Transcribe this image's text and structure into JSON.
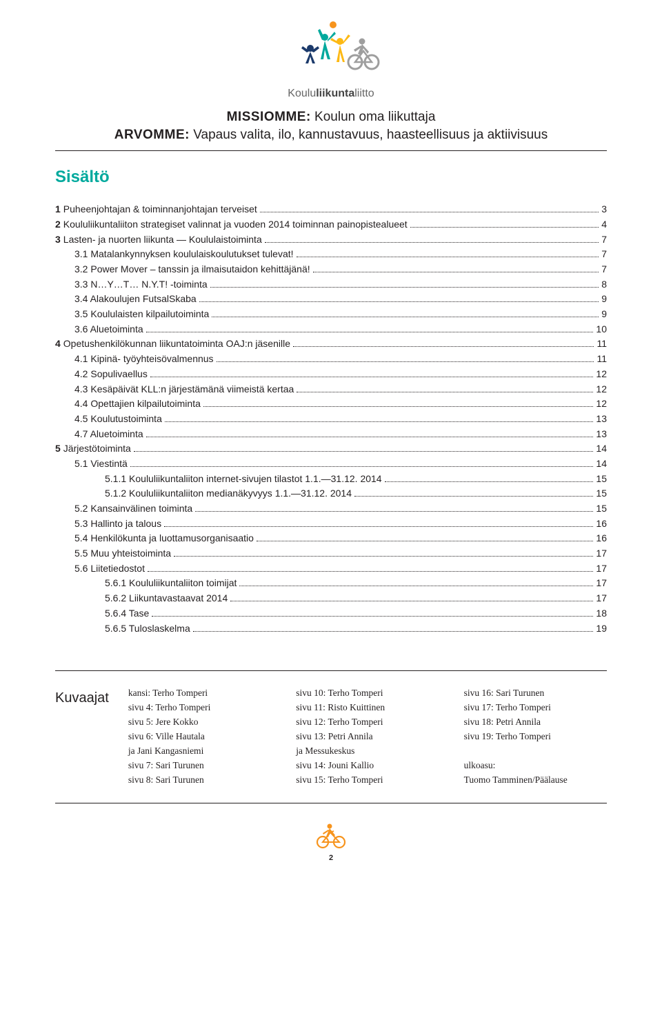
{
  "logo": {
    "word_light": "Koulu",
    "word_bold": "liikunta",
    "word_light2": "liitto",
    "colors": {
      "teal": "#00a99d",
      "navy": "#1b3a6b",
      "orange": "#f7941d",
      "yellow": "#fdb913",
      "grey": "#9e9e9e"
    }
  },
  "headline": {
    "label1": "MISSIOMME:",
    "text1": " Koulun oma liikuttaja",
    "label2": "ARVOMME:",
    "text2": " Vapaus valita, ilo, kannustavuus, haasteellisuus ja aktiivisuus"
  },
  "section_title": "Sisältö",
  "toc": [
    {
      "indent": 0,
      "strong": "1",
      "text": " Puheenjohtajan & toiminnanjohtajan terveiset",
      "page": "3"
    },
    {
      "indent": 0,
      "strong": "2",
      "text": " Koululiikuntaliiton strategiset valinnat ja vuoden 2014 toiminnan painopistealueet",
      "page": "4"
    },
    {
      "indent": 0,
      "strong": "3",
      "text": " Lasten- ja nuorten liikunta — Koululaistoiminta",
      "page": "7"
    },
    {
      "indent": 1,
      "text": "3.1 Matalankynnyksen koululaiskoulutukset tulevat! ",
      "page": "7"
    },
    {
      "indent": 1,
      "text": "3.2 Power Mover – tanssin ja ilmaisutaidon kehittäjänä!",
      "page": "7"
    },
    {
      "indent": 1,
      "text": "3.3 N…Y…T… N.Y.T! -toiminta",
      "page": "8"
    },
    {
      "indent": 1,
      "text": "3.4 Alakoulujen FutsalSkaba",
      "page": "9"
    },
    {
      "indent": 1,
      "text": "3.5 Koululaisten kilpailutoiminta",
      "page": "9"
    },
    {
      "indent": 1,
      "text": "3.6 Aluetoiminta",
      "page": "10"
    },
    {
      "indent": 0,
      "strong": "4",
      "text": " Opetushenkilökunnan liikuntatoiminta OAJ:n jäsenille",
      "page": "11"
    },
    {
      "indent": 1,
      "text": "4.1 Kipinä- työyhteisövalmennus",
      "page": "11"
    },
    {
      "indent": 1,
      "text": "4.2 Sopulivaellus",
      "page": "12"
    },
    {
      "indent": 1,
      "text": "4.3 Kesäpäivät KLL:n järjestämänä viimeistä kertaa",
      "page": "12"
    },
    {
      "indent": 1,
      "text": "4.4 Opettajien kilpailutoiminta",
      "page": "12"
    },
    {
      "indent": 1,
      "text": "4.5 Koulutustoiminta",
      "page": "13"
    },
    {
      "indent": 1,
      "text": "4.7 Aluetoiminta",
      "page": "13"
    },
    {
      "indent": 0,
      "strong": "5",
      "text": " Järjestötoiminta",
      "page": "14"
    },
    {
      "indent": 1,
      "text": "5.1 Viestintä",
      "page": "14"
    },
    {
      "indent": 2,
      "text": "5.1.1 Koululiikuntaliiton internet-sivujen tilastot 1.1.—31.12. 2014",
      "page": "15"
    },
    {
      "indent": 2,
      "text": "5.1.2 Koululiikuntaliiton medianäkyvyys 1.1.—31.12. 2014",
      "page": "15"
    },
    {
      "indent": 1,
      "text": "5.2 Kansainvälinen toiminta",
      "page": "15"
    },
    {
      "indent": 1,
      "text": "5.3 Hallinto ja talous",
      "page": "16"
    },
    {
      "indent": 1,
      "text": "5.4 Henkilökunta ja luottamusorganisaatio",
      "page": "16"
    },
    {
      "indent": 1,
      "text": "5.5 Muu yhteistoiminta",
      "page": "17"
    },
    {
      "indent": 1,
      "text": "5.6 Liitetiedostot",
      "page": "17"
    },
    {
      "indent": 2,
      "text": "5.6.1 Koululiikuntaliiton toimijat",
      "page": "17"
    },
    {
      "indent": 2,
      "text": "5.6.2 Liikuntavastaavat 2014",
      "page": "17"
    },
    {
      "indent": 2,
      "text": "5.6.4 Tase",
      "page": "18"
    },
    {
      "indent": 2,
      "text": "5.6.5 Tuloslaskelma",
      "page": "19"
    }
  ],
  "credits": {
    "label": "Kuvaajat",
    "col1": [
      "kansi: Terho Tomperi",
      "sivu 4: Terho Tomperi",
      "sivu 5: Jere Kokko",
      "sivu 6: Ville Hautala",
      "ja Jani Kangasniemi",
      "sivu 7: Sari Turunen",
      "sivu 8: Sari Turunen"
    ],
    "col2": [
      "sivu 10: Terho Tomperi",
      "sivu 11: Risto Kuittinen",
      "sivu 12: Terho Tomperi",
      "sivu 13: Petri Annila",
      "ja Messukeskus",
      "sivu 14: Jouni Kallio",
      "sivu 15: Terho Tomperi"
    ],
    "col3": [
      "sivu 16: Sari Turunen",
      "sivu 17: Terho Tomperi",
      "sivu 18: Petri Annila",
      "sivu 19: Terho Tomperi",
      "",
      "ulkoasu:",
      "Tuomo Tamminen/Päälause"
    ]
  },
  "page_number": "2",
  "footer_icon_color": "#f7941d"
}
